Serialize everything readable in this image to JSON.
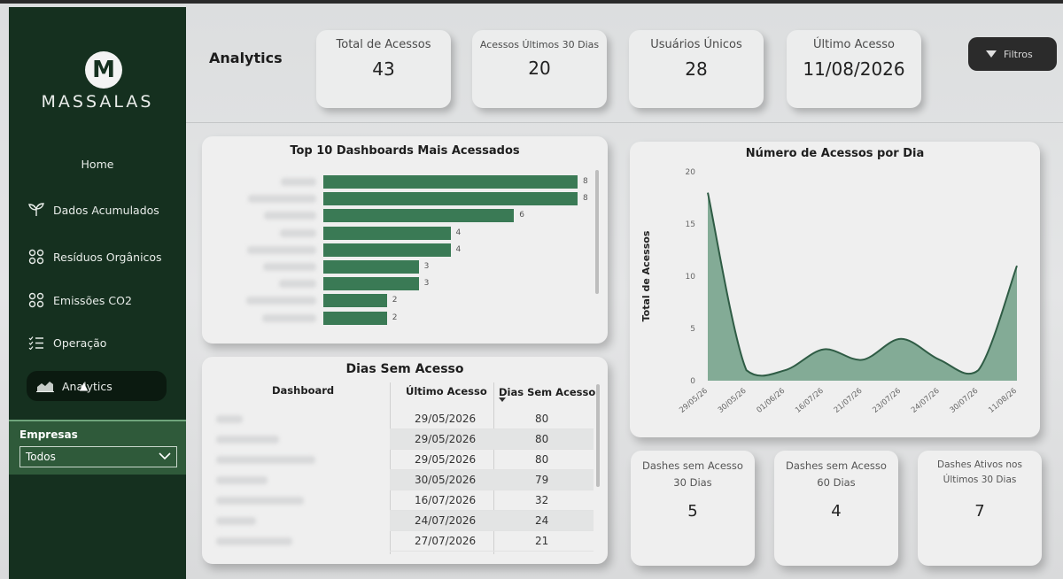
{
  "brand": {
    "logo_letter": "M",
    "name": "MASSALAS"
  },
  "sidebar": {
    "items": [
      {
        "label": "Home",
        "icon": "home"
      },
      {
        "label": "Dados Acumulados",
        "icon": "sprout-icon"
      },
      {
        "label": "Resíduos Orgânicos",
        "icon": "grid-icon"
      },
      {
        "label": "Emissões CO2",
        "icon": "grid-icon"
      },
      {
        "label": "Operação",
        "icon": "checklist-icon"
      },
      {
        "label": "Analytics",
        "icon": "area-chart-icon"
      }
    ],
    "filter_label": "Empresas",
    "filter_value": "Todos"
  },
  "header": {
    "title": "Analytics",
    "filter_button": "Filtros"
  },
  "kpis": [
    {
      "label": "Total de Acessos",
      "value": "43"
    },
    {
      "label": "Acessos Últimos 30 Dias",
      "value": "20"
    },
    {
      "label": "Usuários Únicos",
      "value": "28"
    },
    {
      "label": "Último Acesso",
      "value": "11/08/2026"
    }
  ],
  "top_dashboards": {
    "title": "Top 10 Dashboards Mais Acessados",
    "values": [
      8,
      8,
      6,
      4,
      4,
      3,
      3,
      2,
      2
    ]
  },
  "dias_sem_acesso": {
    "title": "Dias Sem Acesso",
    "columns": [
      "Dashboard",
      "Último Acesso",
      "Dias Sem Acesso"
    ],
    "rows": [
      {
        "date": "29/05/2026",
        "days": "80"
      },
      {
        "date": "29/05/2026",
        "days": "80"
      },
      {
        "date": "29/05/2026",
        "days": "80"
      },
      {
        "date": "30/05/2026",
        "days": "79"
      },
      {
        "date": "16/07/2026",
        "days": "32"
      },
      {
        "date": "24/07/2026",
        "days": "24"
      },
      {
        "date": "27/07/2026",
        "days": "21"
      }
    ]
  },
  "chart_data": {
    "type": "area",
    "title": "Número de Acessos por Dia",
    "ylabel": "Total de Acessos",
    "xlabel": "",
    "ylim": [
      0,
      20
    ],
    "yticks": [
      0,
      5,
      10,
      15,
      20
    ],
    "x": [
      "29/05/26",
      "30/05/26",
      "01/06/26",
      "16/07/26",
      "21/07/26",
      "23/07/26",
      "24/07/26",
      "30/07/26",
      "11/08/26"
    ],
    "values": [
      18,
      1,
      1,
      3,
      2,
      4,
      2,
      1,
      11
    ],
    "color": "#5f9478"
  },
  "mini_kpis": [
    {
      "label": "Dashes sem Acesso 30 Dias",
      "value": "5"
    },
    {
      "label": "Dashes sem Acesso 60 Dias",
      "value": "4"
    },
    {
      "label": "Dashes Ativos nos Últimos 30 Dias",
      "value": "7"
    }
  ]
}
